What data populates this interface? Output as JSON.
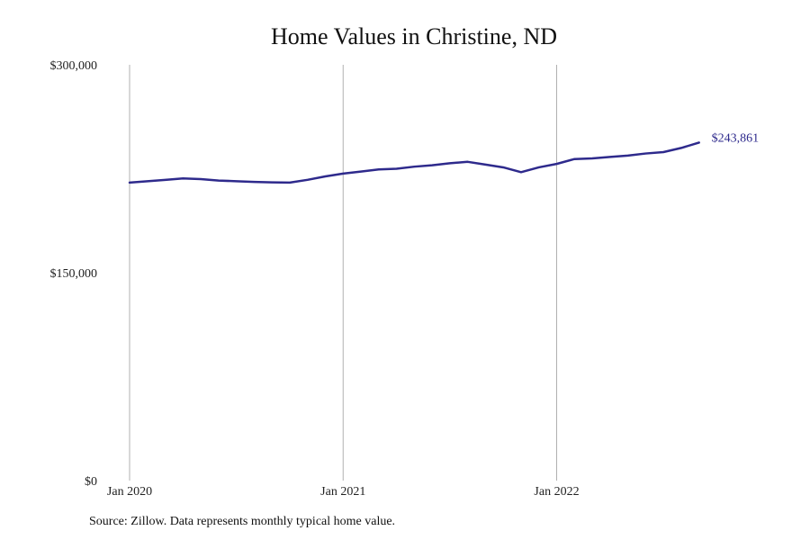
{
  "chart_data": {
    "type": "line",
    "title": "Home Values in Christine, ND",
    "xlabel": "",
    "ylabel": "",
    "source_note": "Source: Zillow. Data represents monthly typical home value.",
    "ylim": [
      0,
      300000
    ],
    "yticks": [
      {
        "value": 0,
        "label": "$0"
      },
      {
        "value": 150000,
        "label": "$150,000"
      },
      {
        "value": 300000,
        "label": "$300,000"
      }
    ],
    "xticks": [
      {
        "date": "2020-01",
        "label": "Jan 2020"
      },
      {
        "date": "2021-01",
        "label": "Jan 2021"
      },
      {
        "date": "2022-01",
        "label": "Jan 2022"
      }
    ],
    "xlim": [
      "2020-01",
      "2022-12"
    ],
    "grid": {
      "vertical": true,
      "horizontal": false
    },
    "line_color": "#2e2a8c",
    "gridline_color": "#b0b0b0",
    "end_label": "$243,861",
    "series": [
      {
        "x": [
          "2020-01",
          "2020-02",
          "2020-03",
          "2020-04",
          "2020-05",
          "2020-06",
          "2020-07",
          "2020-08",
          "2020-09",
          "2020-10",
          "2020-11",
          "2020-12",
          "2021-01",
          "2021-02",
          "2021-03",
          "2021-04",
          "2021-05",
          "2021-06",
          "2021-07",
          "2021-08",
          "2021-09",
          "2021-10",
          "2021-11",
          "2021-12",
          "2022-01",
          "2022-02",
          "2022-03",
          "2022-04",
          "2022-05",
          "2022-06",
          "2022-07",
          "2022-08",
          "2022-09",
          "2022-10",
          "2022-11",
          "2022-12"
        ],
        "values": [
          215000,
          216000,
          217000,
          218000,
          217500,
          216500,
          216000,
          215500,
          215200,
          215000,
          217000,
          219500,
          221500,
          223000,
          224500,
          225000,
          226500,
          227500,
          229000,
          230000,
          228000,
          226000,
          222500,
          226000,
          228500,
          232000,
          232500,
          233500,
          234500,
          236000,
          237000,
          240000,
          243861,
          null,
          null,
          null
        ]
      }
    ]
  }
}
